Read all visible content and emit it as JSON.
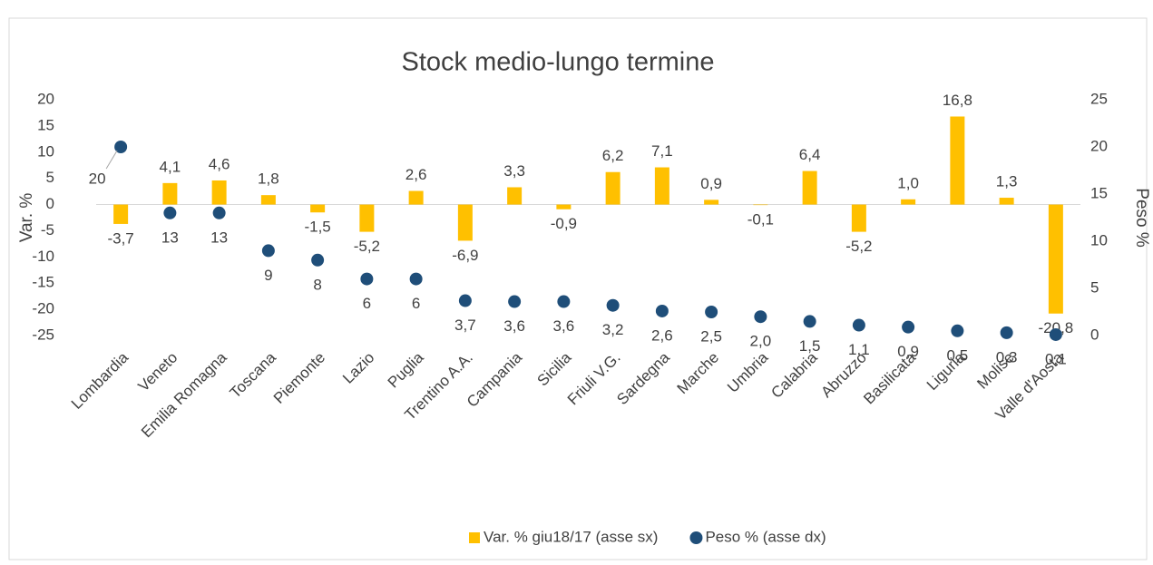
{
  "chart_data": {
    "type": "bar",
    "title": "Stock medio-lungo termine",
    "ylabel": "Var. %",
    "y2label": "Peso %",
    "categories": [
      "Lombardia",
      "Veneto",
      "Emilia Romagna",
      "Toscana",
      "Piemonte",
      "Lazio",
      "Puglia",
      "Trentino A.A.",
      "Campania",
      "Sicilia",
      "Friuli V.G.",
      "Sardegna",
      "Marche",
      "Umbria",
      "Calabria",
      "Abruzzo",
      "Basilicata",
      "Liguria",
      "Molise",
      "Valle d'Aosta"
    ],
    "series": [
      {
        "name": "Var. % giu18/17 (asse sx)",
        "type": "bar",
        "color": "#ffc000",
        "values": [
          -3.7,
          4.1,
          4.6,
          1.8,
          -1.5,
          -5.2,
          2.6,
          -6.9,
          3.3,
          -0.9,
          6.2,
          7.1,
          0.9,
          -0.1,
          6.4,
          -5.2,
          1.0,
          16.8,
          1.3,
          -20.8
        ],
        "value_labels": [
          "-3,7",
          "4,1",
          "4,6",
          "1,8",
          "-1,5",
          "-5,2",
          "2,6",
          "-6,9",
          "3,3",
          "-0,9",
          "6,2",
          "7,1",
          "0,9",
          "-0,1",
          "6,4",
          "-5,2",
          "1,0",
          "16,8",
          "1,3",
          "-20,8"
        ]
      },
      {
        "name": "Peso % (asse dx)",
        "type": "scatter",
        "axis": "y2",
        "color": "#1f4e79",
        "values": [
          20,
          13,
          13,
          9,
          8,
          6,
          6,
          3.7,
          3.6,
          3.6,
          3.2,
          2.6,
          2.5,
          2.0,
          1.5,
          1.1,
          0.9,
          0.5,
          0.3,
          0.1
        ],
        "value_labels": [
          "20",
          "13",
          "13",
          "9",
          "8",
          "6",
          "6",
          "3,7",
          "3,6",
          "3,6",
          "3,2",
          "2,6",
          "2,5",
          "2,0",
          "1,5",
          "1,1",
          "0,9",
          "0,5",
          "0,3",
          "0,1"
        ]
      }
    ],
    "ylim": [
      -25,
      20
    ],
    "yticks": [
      -25,
      -20,
      -15,
      -10,
      -5,
      0,
      5,
      10,
      15,
      20
    ],
    "y2lim": [
      0,
      25
    ],
    "y2ticks": [
      0,
      5,
      10,
      15,
      20,
      25
    ],
    "grid": false,
    "legend": "bottom"
  }
}
